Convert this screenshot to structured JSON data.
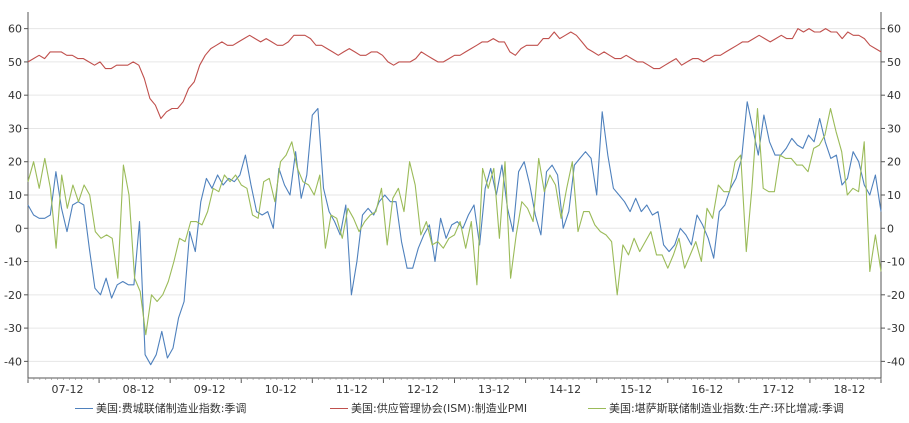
{
  "chart_data": {
    "type": "line",
    "x_ticks": [
      "07-12",
      "08-12",
      "09-12",
      "10-12",
      "11-12",
      "12-12",
      "13-12",
      "14-12",
      "15-12",
      "16-12",
      "17-12",
      "18-12"
    ],
    "x_range": [
      "2006-12",
      "2018-12"
    ],
    "ylim": [
      -45,
      65
    ],
    "y_ticks": [
      -40,
      -30,
      -20,
      -10,
      0,
      10,
      20,
      30,
      40,
      50,
      60
    ],
    "grid": "horizontal",
    "legend_position": "bottom",
    "colors": {
      "philly": "#4f81bd",
      "ism": "#c0504d",
      "dallas": "#9bbb59"
    },
    "series": [
      {
        "name": "美国:费城联储制造业指数:季调",
        "color": "#4f81bd",
        "values": [
          7,
          4,
          3,
          3,
          4,
          17,
          6,
          -1,
          7,
          8,
          7,
          -6,
          -18,
          -20,
          -15,
          -21,
          -17,
          -16,
          -17,
          -17,
          2,
          -38,
          -41,
          -38,
          -31,
          -39,
          -36,
          -27,
          -22,
          -1,
          -7,
          8,
          15,
          12,
          16,
          13,
          15,
          14,
          16,
          22,
          13,
          5,
          4,
          5,
          0,
          18,
          13,
          10,
          23,
          9,
          16,
          34,
          36,
          12,
          5,
          2,
          -2,
          7,
          -20,
          -10,
          4,
          6,
          4,
          8,
          10,
          8,
          8,
          -4,
          -12,
          -12,
          -6,
          -2,
          1,
          -10,
          3,
          -3,
          1,
          2,
          0,
          4,
          7,
          -5,
          12,
          18,
          10,
          19,
          6,
          -1,
          17,
          20,
          13,
          4,
          -2,
          17,
          19,
          16,
          0,
          5,
          19,
          21,
          23,
          21,
          10,
          35,
          22,
          12,
          10,
          8,
          5,
          9,
          5,
          7,
          4,
          5,
          -5,
          -7,
          -5,
          0,
          -2,
          -5,
          4,
          1,
          -3,
          -9,
          5,
          7,
          12,
          15,
          21,
          38,
          30,
          22,
          34,
          26,
          22,
          22,
          24,
          27,
          25,
          24,
          28,
          26,
          33,
          26,
          21,
          22,
          13,
          15,
          23,
          20,
          13,
          10,
          16,
          5
        ]
      },
      {
        "name": "美国:供应管理协会(ISM):制造业PMI",
        "color": "#c0504d",
        "values": [
          50,
          51,
          52,
          51,
          53,
          53,
          53,
          52,
          52,
          51,
          51,
          50,
          49,
          50,
          48,
          48,
          49,
          49,
          49,
          50,
          49,
          45,
          39,
          37,
          33,
          35,
          36,
          36,
          38,
          42,
          44,
          49,
          52,
          54,
          55,
          56,
          55,
          55,
          56,
          57,
          58,
          57,
          56,
          57,
          56,
          55,
          55,
          56,
          58,
          58,
          58,
          57,
          55,
          55,
          54,
          53,
          52,
          53,
          54,
          53,
          52,
          52,
          53,
          53,
          52,
          50,
          49,
          50,
          50,
          50,
          51,
          53,
          52,
          51,
          50,
          50,
          51,
          52,
          52,
          53,
          54,
          55,
          56,
          56,
          57,
          56,
          56,
          53,
          52,
          54,
          55,
          55,
          55,
          57,
          57,
          59,
          57,
          58,
          59,
          58,
          56,
          54,
          53,
          52,
          53,
          52,
          51,
          51,
          52,
          51,
          50,
          50,
          49,
          48,
          48,
          49,
          50,
          51,
          49,
          50,
          51,
          51,
          50,
          51,
          52,
          52,
          53,
          54,
          55,
          56,
          56,
          57,
          58,
          57,
          56,
          57,
          58,
          57,
          57,
          60,
          59,
          60,
          59,
          59,
          60,
          59,
          59,
          57,
          59,
          58,
          58,
          57,
          55,
          54,
          53
        ]
      },
      {
        "name": "美国:堪萨斯联储制造业指数:生产:环比增减:季调",
        "color": "#9bbb59",
        "values": [
          14,
          20,
          12,
          21,
          12,
          -6,
          16,
          6,
          13,
          8,
          13,
          10,
          -1,
          -3,
          -2,
          -3,
          -15,
          19,
          10,
          -15,
          -19,
          -32,
          -20,
          -22,
          -20,
          -16,
          -10,
          -3,
          -4,
          2,
          2,
          1,
          5,
          12,
          11,
          16,
          14,
          16,
          13,
          12,
          4,
          3,
          14,
          15,
          8,
          20,
          22,
          26,
          18,
          14,
          13,
          10,
          16,
          -6,
          4,
          3,
          -3,
          6,
          3,
          -1,
          2,
          4,
          5,
          12,
          -5,
          9,
          12,
          5,
          20,
          13,
          -2,
          2,
          -5,
          -4,
          -6,
          -3,
          -2,
          2,
          -6,
          2,
          -17,
          18,
          12,
          18,
          -3,
          20,
          -15,
          -2,
          8,
          6,
          2,
          21,
          11,
          16,
          13,
          3,
          12,
          20,
          -1,
          5,
          5,
          1,
          -1,
          -2,
          -4,
          -20,
          -5,
          -8,
          -3,
          -7,
          -4,
          -1,
          -8,
          -8,
          -12,
          -8,
          -3,
          -12,
          -8,
          -4,
          -10,
          6,
          3,
          13,
          11,
          11,
          20,
          22,
          -7,
          12,
          36,
          12,
          11,
          11,
          22,
          21,
          21,
          19,
          19,
          17,
          24,
          25,
          28,
          36,
          29,
          23,
          10,
          12,
          11,
          26,
          -13,
          -2,
          -13
        ]
      }
    ]
  },
  "legend": [
    {
      "label": "美国:费城联储制造业指数:季调",
      "color": "#4f81bd"
    },
    {
      "label": "美国:供应管理协会(ISM):制造业PMI",
      "color": "#c0504d"
    },
    {
      "label": "美国:堪萨斯联储制造业指数:生产:环比增减:季调",
      "color": "#9bbb59"
    }
  ]
}
